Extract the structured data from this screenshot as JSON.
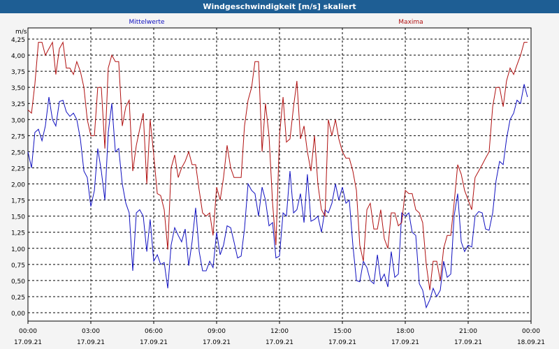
{
  "window": {
    "title": "Windgeschwindigkeit [m/s] skaliert"
  },
  "chart_data": {
    "type": "line",
    "title": "Windgeschwindigkeit [m/s] skaliert",
    "ylabel": "m/s",
    "xlabel": "",
    "ylim": [
      0,
      4.25
    ],
    "grid": true,
    "legend_placement": "top",
    "y_ticks": [
      "0,00",
      "0,25",
      "0,50",
      "0,75",
      "1,00",
      "1,25",
      "1,50",
      "1,75",
      "2,00",
      "2,25",
      "2,50",
      "2,75",
      "3,00",
      "3,25",
      "3,50",
      "3,75",
      "4,00",
      "4,25"
    ],
    "x_ticks": [
      {
        "time": "00:00",
        "date": "17.09.21"
      },
      {
        "time": "03:00",
        "date": "17.09.21"
      },
      {
        "time": "06:00",
        "date": "17.09.21"
      },
      {
        "time": "09:00",
        "date": "17.09.21"
      },
      {
        "time": "12:00",
        "date": "17.09.21"
      },
      {
        "time": "15:00",
        "date": "17.09.21"
      },
      {
        "time": "18:00",
        "date": "17.09.21"
      },
      {
        "time": "21:00",
        "date": "17.09.21"
      },
      {
        "time": "00:00",
        "date": "18.09.21"
      }
    ],
    "x_unit": "hours since 17.09.21 00:00",
    "series": [
      {
        "name": "Mittelwerte",
        "color": "#1010c0",
        "points": [
          [
            0.0,
            2.5
          ],
          [
            0.17,
            2.25
          ],
          [
            0.33,
            2.8
          ],
          [
            0.5,
            2.85
          ],
          [
            0.67,
            2.67
          ],
          [
            0.83,
            2.9
          ],
          [
            1.0,
            3.35
          ],
          [
            1.17,
            3.0
          ],
          [
            1.33,
            2.9
          ],
          [
            1.5,
            3.28
          ],
          [
            1.67,
            3.3
          ],
          [
            1.83,
            3.12
          ],
          [
            2.0,
            3.05
          ],
          [
            2.17,
            3.1
          ],
          [
            2.33,
            3.0
          ],
          [
            2.5,
            2.7
          ],
          [
            2.67,
            2.2
          ],
          [
            2.83,
            2.1
          ],
          [
            3.0,
            1.65
          ],
          [
            3.17,
            1.9
          ],
          [
            3.33,
            2.55
          ],
          [
            3.5,
            2.2
          ],
          [
            3.67,
            1.75
          ],
          [
            3.83,
            2.8
          ],
          [
            4.0,
            3.25
          ],
          [
            4.17,
            2.5
          ],
          [
            4.33,
            2.55
          ],
          [
            4.5,
            2.0
          ],
          [
            4.67,
            1.7
          ],
          [
            4.83,
            1.55
          ],
          [
            5.0,
            0.65
          ],
          [
            5.17,
            1.55
          ],
          [
            5.33,
            1.6
          ],
          [
            5.5,
            1.5
          ],
          [
            5.67,
            0.95
          ],
          [
            5.83,
            1.45
          ],
          [
            6.0,
            0.8
          ],
          [
            6.17,
            0.9
          ],
          [
            6.33,
            0.75
          ],
          [
            6.5,
            0.78
          ],
          [
            6.67,
            0.38
          ],
          [
            6.83,
            1.05
          ],
          [
            7.0,
            1.32
          ],
          [
            7.17,
            1.2
          ],
          [
            7.33,
            1.1
          ],
          [
            7.5,
            1.3
          ],
          [
            7.67,
            0.73
          ],
          [
            7.83,
            1.1
          ],
          [
            8.0,
            1.63
          ],
          [
            8.17,
            0.95
          ],
          [
            8.33,
            0.65
          ],
          [
            8.5,
            0.65
          ],
          [
            8.67,
            0.8
          ],
          [
            8.83,
            0.7
          ],
          [
            9.0,
            1.25
          ],
          [
            9.17,
            0.9
          ],
          [
            9.33,
            1.05
          ],
          [
            9.5,
            1.35
          ],
          [
            9.67,
            1.32
          ],
          [
            9.83,
            1.1
          ],
          [
            10.0,
            0.85
          ],
          [
            10.17,
            0.88
          ],
          [
            10.33,
            1.3
          ],
          [
            10.5,
            2.0
          ],
          [
            10.67,
            1.9
          ],
          [
            10.83,
            1.85
          ],
          [
            11.0,
            1.5
          ],
          [
            11.17,
            1.95
          ],
          [
            11.33,
            1.75
          ],
          [
            11.5,
            1.35
          ],
          [
            11.67,
            1.4
          ],
          [
            11.83,
            0.85
          ],
          [
            12.0,
            0.88
          ],
          [
            12.17,
            1.55
          ],
          [
            12.33,
            1.5
          ],
          [
            12.5,
            2.2
          ],
          [
            12.67,
            1.55
          ],
          [
            12.83,
            1.6
          ],
          [
            13.0,
            1.85
          ],
          [
            13.17,
            1.4
          ],
          [
            13.33,
            2.15
          ],
          [
            13.5,
            1.42
          ],
          [
            13.67,
            1.45
          ],
          [
            13.83,
            1.5
          ],
          [
            14.0,
            1.25
          ],
          [
            14.17,
            1.6
          ],
          [
            14.33,
            1.55
          ],
          [
            14.5,
            1.7
          ],
          [
            14.67,
            2.0
          ],
          [
            14.83,
            1.75
          ],
          [
            15.0,
            1.95
          ],
          [
            15.17,
            1.7
          ],
          [
            15.33,
            1.75
          ],
          [
            15.5,
            1.05
          ],
          [
            15.67,
            0.5
          ],
          [
            15.83,
            0.48
          ],
          [
            16.0,
            0.8
          ],
          [
            16.17,
            0.7
          ],
          [
            16.33,
            0.5
          ],
          [
            16.5,
            0.45
          ],
          [
            16.67,
            0.9
          ],
          [
            16.83,
            0.5
          ],
          [
            17.0,
            0.6
          ],
          [
            17.17,
            0.4
          ],
          [
            17.33,
            0.95
          ],
          [
            17.5,
            0.55
          ],
          [
            17.67,
            0.6
          ],
          [
            17.83,
            1.55
          ],
          [
            18.0,
            1.5
          ],
          [
            18.17,
            1.55
          ],
          [
            18.33,
            1.25
          ],
          [
            18.5,
            1.2
          ],
          [
            18.67,
            0.45
          ],
          [
            18.83,
            0.35
          ],
          [
            19.0,
            0.08
          ],
          [
            19.17,
            0.2
          ],
          [
            19.33,
            0.38
          ],
          [
            19.5,
            0.25
          ],
          [
            19.67,
            0.35
          ],
          [
            19.83,
            0.8
          ],
          [
            20.0,
            0.55
          ],
          [
            20.17,
            0.6
          ],
          [
            20.33,
            1.5
          ],
          [
            20.5,
            1.85
          ],
          [
            20.67,
            1.1
          ],
          [
            20.83,
            0.95
          ],
          [
            21.0,
            1.05
          ],
          [
            21.17,
            1.02
          ],
          [
            21.33,
            1.5
          ],
          [
            21.5,
            1.57
          ],
          [
            21.67,
            1.55
          ],
          [
            21.83,
            1.3
          ],
          [
            22.0,
            1.28
          ],
          [
            22.17,
            1.55
          ],
          [
            22.33,
            2.05
          ],
          [
            22.5,
            2.35
          ],
          [
            22.67,
            2.3
          ],
          [
            22.83,
            2.7
          ],
          [
            23.0,
            3.0
          ],
          [
            23.17,
            3.1
          ],
          [
            23.33,
            3.3
          ],
          [
            23.5,
            3.25
          ],
          [
            23.67,
            3.55
          ],
          [
            23.83,
            3.35
          ]
        ]
      },
      {
        "name": "Maxima",
        "color": "#b01010",
        "points": [
          [
            0.0,
            3.15
          ],
          [
            0.17,
            3.1
          ],
          [
            0.33,
            3.55
          ],
          [
            0.5,
            4.2
          ],
          [
            0.67,
            4.2
          ],
          [
            0.83,
            4.0
          ],
          [
            1.0,
            4.1
          ],
          [
            1.17,
            4.2
          ],
          [
            1.33,
            3.7
          ],
          [
            1.5,
            4.1
          ],
          [
            1.67,
            4.2
          ],
          [
            1.83,
            3.8
          ],
          [
            2.0,
            3.8
          ],
          [
            2.17,
            3.7
          ],
          [
            2.33,
            3.9
          ],
          [
            2.5,
            3.75
          ],
          [
            2.67,
            3.5
          ],
          [
            2.83,
            3.0
          ],
          [
            3.0,
            2.75
          ],
          [
            3.17,
            2.75
          ],
          [
            3.33,
            3.5
          ],
          [
            3.5,
            3.5
          ],
          [
            3.67,
            2.55
          ],
          [
            3.83,
            3.8
          ],
          [
            4.0,
            4.0
          ],
          [
            4.17,
            3.9
          ],
          [
            4.33,
            3.9
          ],
          [
            4.5,
            2.9
          ],
          [
            4.67,
            3.2
          ],
          [
            4.83,
            3.3
          ],
          [
            5.0,
            2.2
          ],
          [
            5.17,
            2.6
          ],
          [
            5.33,
            2.85
          ],
          [
            5.5,
            3.1
          ],
          [
            5.67,
            2.0
          ],
          [
            5.83,
            3.0
          ],
          [
            6.0,
            2.45
          ],
          [
            6.17,
            1.85
          ],
          [
            6.33,
            1.82
          ],
          [
            6.5,
            1.6
          ],
          [
            6.67,
            0.98
          ],
          [
            6.83,
            2.25
          ],
          [
            7.0,
            2.45
          ],
          [
            7.17,
            2.1
          ],
          [
            7.33,
            2.25
          ],
          [
            7.5,
            2.35
          ],
          [
            7.67,
            2.5
          ],
          [
            7.83,
            2.3
          ],
          [
            8.0,
            2.3
          ],
          [
            8.17,
            1.9
          ],
          [
            8.33,
            1.55
          ],
          [
            8.5,
            1.5
          ],
          [
            8.67,
            1.55
          ],
          [
            8.83,
            1.2
          ],
          [
            9.0,
            1.95
          ],
          [
            9.17,
            1.75
          ],
          [
            9.33,
            2.1
          ],
          [
            9.5,
            2.6
          ],
          [
            9.67,
            2.25
          ],
          [
            9.83,
            2.1
          ],
          [
            10.0,
            2.1
          ],
          [
            10.17,
            2.1
          ],
          [
            10.33,
            2.9
          ],
          [
            10.5,
            3.3
          ],
          [
            10.67,
            3.5
          ],
          [
            10.83,
            3.9
          ],
          [
            11.0,
            3.9
          ],
          [
            11.17,
            2.5
          ],
          [
            11.33,
            3.25
          ],
          [
            11.5,
            2.75
          ],
          [
            11.67,
            1.7
          ],
          [
            11.83,
            1.05
          ],
          [
            12.0,
            2.75
          ],
          [
            12.17,
            3.35
          ],
          [
            12.33,
            2.65
          ],
          [
            12.5,
            2.7
          ],
          [
            12.67,
            3.2
          ],
          [
            12.83,
            3.6
          ],
          [
            13.0,
            2.7
          ],
          [
            13.17,
            2.9
          ],
          [
            13.33,
            2.5
          ],
          [
            13.5,
            2.2
          ],
          [
            13.67,
            2.75
          ],
          [
            13.83,
            2.0
          ],
          [
            14.0,
            1.6
          ],
          [
            14.17,
            1.5
          ],
          [
            14.33,
            3.0
          ],
          [
            14.5,
            2.75
          ],
          [
            14.67,
            3.0
          ],
          [
            14.83,
            2.7
          ],
          [
            15.0,
            2.5
          ],
          [
            15.17,
            2.4
          ],
          [
            15.33,
            2.4
          ],
          [
            15.5,
            2.2
          ],
          [
            15.67,
            1.9
          ],
          [
            15.83,
            1.05
          ],
          [
            16.0,
            0.8
          ],
          [
            16.17,
            1.6
          ],
          [
            16.33,
            1.7
          ],
          [
            16.5,
            1.3
          ],
          [
            16.67,
            1.3
          ],
          [
            16.83,
            1.6
          ],
          [
            17.0,
            1.15
          ],
          [
            17.17,
            1.0
          ],
          [
            17.33,
            1.55
          ],
          [
            17.5,
            1.55
          ],
          [
            17.67,
            1.35
          ],
          [
            17.83,
            1.4
          ],
          [
            18.0,
            1.9
          ],
          [
            18.17,
            1.85
          ],
          [
            18.33,
            1.85
          ],
          [
            18.5,
            1.6
          ],
          [
            18.67,
            1.55
          ],
          [
            18.83,
            1.4
          ],
          [
            19.0,
            0.75
          ],
          [
            19.17,
            0.35
          ],
          [
            19.33,
            0.8
          ],
          [
            19.5,
            0.8
          ],
          [
            19.67,
            0.5
          ],
          [
            19.83,
            1.0
          ],
          [
            20.0,
            1.2
          ],
          [
            20.17,
            1.2
          ],
          [
            20.33,
            1.7
          ],
          [
            20.5,
            2.3
          ],
          [
            20.67,
            2.15
          ],
          [
            20.83,
            1.9
          ],
          [
            21.0,
            1.75
          ],
          [
            21.17,
            1.6
          ],
          [
            21.33,
            2.1
          ],
          [
            21.5,
            2.2
          ],
          [
            21.67,
            2.3
          ],
          [
            21.83,
            2.4
          ],
          [
            22.0,
            2.5
          ],
          [
            22.17,
            3.2
          ],
          [
            22.33,
            3.5
          ],
          [
            22.5,
            3.5
          ],
          [
            22.67,
            3.2
          ],
          [
            22.83,
            3.6
          ],
          [
            23.0,
            3.8
          ],
          [
            23.17,
            3.7
          ],
          [
            23.33,
            3.85
          ],
          [
            23.5,
            4.0
          ],
          [
            23.67,
            4.2
          ],
          [
            23.83,
            4.2
          ]
        ]
      }
    ]
  }
}
